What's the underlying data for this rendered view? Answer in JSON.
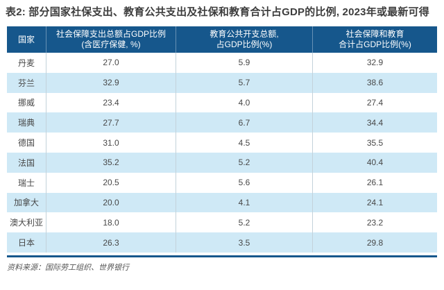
{
  "page": {
    "title": "表2: 部分国家社保支出、教育公共支出及社保和教育合计占GDP的比例, 2023年或最新可得",
    "source_note": "资料来源：国际劳工组织、世界银行"
  },
  "colors": {
    "header_bg": "#16578c",
    "alt_row_bg": "#cfe9f6",
    "bottom_rule": "#16578c",
    "title_text": "#3d3d3d",
    "cell_text": "#474747"
  },
  "table": {
    "headers": [
      "国家",
      "社会保障支出总额占GDP比例\n(含医疗保健, %)",
      "教育公共开支总额,\n占GDP比例(%)",
      "社会保障和教育\n合计占GDP比例(%)"
    ],
    "rows": [
      {
        "country": "丹麦",
        "social_security": "27.0",
        "education": "5.9",
        "combined": "32.9"
      },
      {
        "country": "芬兰",
        "social_security": "32.9",
        "education": "5.7",
        "combined": "38.6"
      },
      {
        "country": "挪威",
        "social_security": "23.4",
        "education": "4.0",
        "combined": "27.4"
      },
      {
        "country": "瑞典",
        "social_security": "27.7",
        "education": "6.7",
        "combined": "34.4"
      },
      {
        "country": "德国",
        "social_security": "31.0",
        "education": "4.5",
        "combined": "35.5"
      },
      {
        "country": "法国",
        "social_security": "35.2",
        "education": "5.2",
        "combined": "40.4"
      },
      {
        "country": "瑞士",
        "social_security": "20.5",
        "education": "5.6",
        "combined": "26.1"
      },
      {
        "country": "加拿大",
        "social_security": "20.0",
        "education": "4.1",
        "combined": "24.1"
      },
      {
        "country": "澳大利亚",
        "social_security": "18.0",
        "education": "5.2",
        "combined": "23.2"
      },
      {
        "country": "日本",
        "social_security": "26.3",
        "education": "3.5",
        "combined": "29.8"
      }
    ]
  },
  "chart_data": {
    "type": "table",
    "title": "表2: 部分国家社保支出、教育公共支出及社保和教育合计占GDP的比例, 2023年或最新可得",
    "columns": [
      "国家",
      "社会保障支出总额占GDP比例(含医疗保健, %)",
      "教育公共开支总额, 占GDP比例(%)",
      "社会保障和教育合计占GDP比例(%)"
    ],
    "rows": [
      [
        "丹麦",
        27.0,
        5.9,
        32.9
      ],
      [
        "芬兰",
        32.9,
        5.7,
        38.6
      ],
      [
        "挪威",
        23.4,
        4.0,
        27.4
      ],
      [
        "瑞典",
        27.7,
        6.7,
        34.4
      ],
      [
        "德国",
        31.0,
        4.5,
        35.5
      ],
      [
        "法国",
        35.2,
        5.2,
        40.4
      ],
      [
        "瑞士",
        20.5,
        5.6,
        26.1
      ],
      [
        "加拿大",
        20.0,
        4.1,
        24.1
      ],
      [
        "澳大利亚",
        18.0,
        5.2,
        23.2
      ],
      [
        "日本",
        26.3,
        3.5,
        29.8
      ]
    ],
    "source": "资料来源：国际劳工组织、世界银行"
  }
}
